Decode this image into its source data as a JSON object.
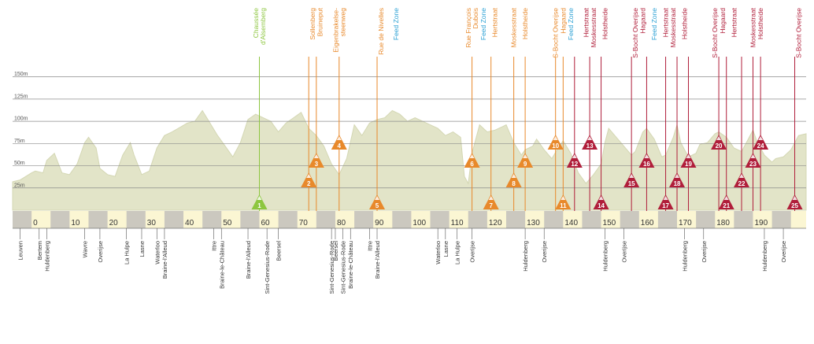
{
  "chart_data": {
    "type": "area",
    "xlim": [
      -5,
      204
    ],
    "ylim": [
      0,
      155
    ],
    "y_ticks": [
      {
        "v": 150,
        "label": "150m"
      },
      {
        "v": 125,
        "label": "125m"
      },
      {
        "v": 100,
        "label": "100m"
      },
      {
        "v": 75,
        "label": "75m"
      },
      {
        "v": 50,
        "label": "50m"
      },
      {
        "v": 25,
        "label": "25m"
      }
    ],
    "x_ticks": [
      {
        "v": 0,
        "label": "0"
      },
      {
        "v": 10,
        "label": "10"
      },
      {
        "v": 20,
        "label": "20"
      },
      {
        "v": 30,
        "label": "30"
      },
      {
        "v": 40,
        "label": "40"
      },
      {
        "v": 50,
        "label": "50"
      },
      {
        "v": 60,
        "label": "60"
      },
      {
        "v": 70,
        "label": "70"
      },
      {
        "v": 80,
        "label": "80"
      },
      {
        "v": 90,
        "label": "90"
      },
      {
        "v": 100,
        "label": "100"
      },
      {
        "v": 110,
        "label": "110"
      },
      {
        "v": 120,
        "label": "120"
      },
      {
        "v": 130,
        "label": "130"
      },
      {
        "v": 140,
        "label": "140"
      },
      {
        "v": 150,
        "label": "150"
      },
      {
        "v": 160,
        "label": "160"
      },
      {
        "v": 170,
        "label": "170"
      },
      {
        "v": 180,
        "label": "180"
      },
      {
        "v": 190,
        "label": "190"
      }
    ],
    "profile": [
      [
        -5,
        32
      ],
      [
        -3,
        34
      ],
      [
        0,
        42
      ],
      [
        1,
        44
      ],
      [
        3,
        42
      ],
      [
        4,
        56
      ],
      [
        6,
        64
      ],
      [
        8,
        42
      ],
      [
        10,
        40
      ],
      [
        12,
        52
      ],
      [
        14,
        76
      ],
      [
        15,
        82
      ],
      [
        17,
        70
      ],
      [
        18,
        47
      ],
      [
        20,
        40
      ],
      [
        22,
        38
      ],
      [
        24,
        62
      ],
      [
        26,
        76
      ],
      [
        27,
        62
      ],
      [
        29,
        40
      ],
      [
        31,
        44
      ],
      [
        33,
        70
      ],
      [
        35,
        84
      ],
      [
        37,
        88
      ],
      [
        39,
        93
      ],
      [
        41,
        98
      ],
      [
        43,
        100
      ],
      [
        45,
        112
      ],
      [
        47,
        98
      ],
      [
        49,
        84
      ],
      [
        51,
        72
      ],
      [
        53,
        60
      ],
      [
        55,
        76
      ],
      [
        57,
        102
      ],
      [
        59,
        108
      ],
      [
        61,
        104
      ],
      [
        63,
        100
      ],
      [
        65,
        88
      ],
      [
        67,
        98
      ],
      [
        69,
        104
      ],
      [
        71,
        110
      ],
      [
        73,
        92
      ],
      [
        75,
        84
      ],
      [
        77,
        72
      ],
      [
        79,
        52
      ],
      [
        81,
        40
      ],
      [
        83,
        58
      ],
      [
        85,
        96
      ],
      [
        87,
        84
      ],
      [
        89,
        98
      ],
      [
        91,
        102
      ],
      [
        93,
        104
      ],
      [
        95,
        112
      ],
      [
        97,
        108
      ],
      [
        99,
        100
      ],
      [
        101,
        104
      ],
      [
        103,
        100
      ],
      [
        105,
        96
      ],
      [
        107,
        92
      ],
      [
        109,
        84
      ],
      [
        111,
        88
      ],
      [
        113,
        82
      ],
      [
        114,
        38
      ],
      [
        115,
        30
      ],
      [
        116,
        64
      ],
      [
        118,
        96
      ],
      [
        120,
        88
      ],
      [
        122,
        90
      ],
      [
        124,
        94
      ],
      [
        125,
        96
      ],
      [
        127,
        76
      ],
      [
        129,
        62
      ],
      [
        130,
        68
      ],
      [
        132,
        72
      ],
      [
        133,
        80
      ],
      [
        135,
        68
      ],
      [
        137,
        58
      ],
      [
        139,
        72
      ],
      [
        140,
        78
      ],
      [
        142,
        64
      ],
      [
        144,
        42
      ],
      [
        146,
        30
      ],
      [
        148,
        40
      ],
      [
        150,
        52
      ],
      [
        151,
        76
      ],
      [
        152,
        92
      ],
      [
        154,
        82
      ],
      [
        156,
        72
      ],
      [
        158,
        62
      ],
      [
        159,
        66
      ],
      [
        161,
        88
      ],
      [
        162,
        92
      ],
      [
        164,
        80
      ],
      [
        166,
        60
      ],
      [
        167,
        62
      ],
      [
        169,
        82
      ],
      [
        170,
        96
      ],
      [
        171,
        76
      ],
      [
        173,
        60
      ],
      [
        175,
        64
      ],
      [
        176,
        74
      ],
      [
        178,
        76
      ],
      [
        180,
        86
      ],
      [
        181,
        88
      ],
      [
        183,
        82
      ],
      [
        185,
        70
      ],
      [
        187,
        66
      ],
      [
        189,
        82
      ],
      [
        190,
        90
      ],
      [
        191,
        78
      ],
      [
        193,
        62
      ],
      [
        195,
        54
      ],
      [
        196,
        58
      ],
      [
        198,
        60
      ],
      [
        200,
        68
      ],
      [
        202,
        84
      ],
      [
        204,
        86
      ]
    ],
    "climbs": [
      {
        "num": "1",
        "km": 60,
        "label": "Chaussée\nd'Alsemberg",
        "color": "#8dc63f",
        "level": 1
      },
      {
        "num": "2",
        "km": 73,
        "label": "",
        "color": "#e8892b",
        "level": 3
      },
      {
        "num": "3",
        "km": 75,
        "label": "",
        "color": "#e8892b",
        "level": 4
      },
      {
        "num": "4",
        "km": 81,
        "label": "",
        "color": "#e8892b",
        "level": 5
      },
      {
        "num": "5",
        "km": 91,
        "label": "Rue de Nivelles",
        "color": "#e8892b",
        "level": 1
      },
      {
        "num": "6",
        "km": 116,
        "label": "",
        "color": "#e8892b",
        "level": 4
      },
      {
        "num": "7",
        "km": 121,
        "label": "",
        "color": "#e8892b",
        "level": 1
      },
      {
        "num": "8",
        "km": 127,
        "label": "",
        "color": "#e8892b",
        "level": 3
      },
      {
        "num": "9",
        "km": 130,
        "label": "",
        "color": "#e8892b",
        "level": 4
      },
      {
        "num": "10",
        "km": 138,
        "label": "",
        "color": "#e8892b",
        "level": 5
      },
      {
        "num": "11",
        "km": 140,
        "label": "",
        "color": "#e8892b",
        "level": 1
      },
      {
        "num": "12",
        "km": 143,
        "label": "",
        "color": "#b01e3a",
        "level": 4
      },
      {
        "num": "13",
        "km": 147,
        "label": "",
        "color": "#b01e3a",
        "level": 5
      },
      {
        "num": "14",
        "km": 150,
        "label": "",
        "color": "#b01e3a",
        "level": 1
      },
      {
        "num": "15",
        "km": 158,
        "label": "",
        "color": "#b01e3a",
        "level": 3
      },
      {
        "num": "16",
        "km": 162,
        "label": "",
        "color": "#b01e3a",
        "level": 4
      },
      {
        "num": "17",
        "km": 167,
        "label": "",
        "color": "#b01e3a",
        "level": 1
      },
      {
        "num": "18",
        "km": 170,
        "label": "",
        "color": "#b01e3a",
        "level": 3
      },
      {
        "num": "19",
        "km": 173,
        "label": "",
        "color": "#b01e3a",
        "level": 4
      },
      {
        "num": "20",
        "km": 181,
        "label": "",
        "color": "#b01e3a",
        "level": 5
      },
      {
        "num": "21",
        "km": 183,
        "label": "",
        "color": "#b01e3a",
        "level": 1
      },
      {
        "num": "22",
        "km": 187,
        "label": "",
        "color": "#b01e3a",
        "level": 3
      },
      {
        "num": "23",
        "km": 190,
        "label": "",
        "color": "#b01e3a",
        "level": 4
      },
      {
        "num": "24",
        "km": 192,
        "label": "",
        "color": "#b01e3a",
        "level": 5
      },
      {
        "num": "25",
        "km": 201,
        "label": "",
        "color": "#b01e3a",
        "level": 1
      }
    ],
    "top_labels": [
      {
        "km": 60,
        "text": "Chaussée\nd'Alsemberg",
        "color": "#8dc63f"
      },
      {
        "km": 74,
        "text": "Sollenberg",
        "color": "#e8892b"
      },
      {
        "km": 76,
        "text": "Bruineput",
        "color": "#e8892b"
      },
      {
        "km": 81,
        "text": "Eigenbrakelse-\nsteenweg",
        "color": "#e8892b"
      },
      {
        "km": 92,
        "text": "Rue de Nivelles",
        "color": "#e8892b"
      },
      {
        "km": 96,
        "text": "Feed Zone",
        "color": "#2aa0d4"
      },
      {
        "km": 116,
        "text": "Rue François\nDubois",
        "color": "#e8892b"
      },
      {
        "km": 119,
        "text": "Feed Zone",
        "color": "#2aa0d4"
      },
      {
        "km": 122,
        "text": "Hertstraat",
        "color": "#e8892b"
      },
      {
        "km": 127,
        "text": "Moskesstraat",
        "color": "#e8892b"
      },
      {
        "km": 130,
        "text": "Holstheide",
        "color": "#e8892b"
      },
      {
        "km": 138,
        "text": "S-Bocht Overijse",
        "color": "#e8892b"
      },
      {
        "km": 140,
        "text": "Hagaard",
        "color": "#e8892b"
      },
      {
        "km": 142,
        "text": "Feed Zone",
        "color": "#2aa0d4"
      },
      {
        "km": 146,
        "text": "Hertstraat",
        "color": "#b01e3a"
      },
      {
        "km": 148,
        "text": "Moskesstraat",
        "color": "#b01e3a"
      },
      {
        "km": 151,
        "text": "Holstheide",
        "color": "#b01e3a"
      },
      {
        "km": 159,
        "text": "S-Bocht Overijse",
        "color": "#b01e3a"
      },
      {
        "km": 161,
        "text": "Hagaard",
        "color": "#b01e3a"
      },
      {
        "km": 164,
        "text": "Feed Zone",
        "color": "#2aa0d4"
      },
      {
        "km": 167,
        "text": "Hertstraat",
        "color": "#b01e3a"
      },
      {
        "km": 169,
        "text": "Moskesstraat",
        "color": "#b01e3a"
      },
      {
        "km": 172,
        "text": "Holstheide",
        "color": "#b01e3a"
      },
      {
        "km": 180,
        "text": "S-Bocht Overijse",
        "color": "#b01e3a"
      },
      {
        "km": 182,
        "text": "Hagaard",
        "color": "#b01e3a"
      },
      {
        "km": 185,
        "text": "Hertstraat",
        "color": "#b01e3a"
      },
      {
        "km": 190,
        "text": "Moskesstraat",
        "color": "#b01e3a"
      },
      {
        "km": 192,
        "text": "Holstheide",
        "color": "#b01e3a"
      },
      {
        "km": 202,
        "text": "S-Bocht Overijse",
        "color": "#b01e3a"
      }
    ],
    "towns": [
      {
        "km": -3,
        "name": "Leuven"
      },
      {
        "km": 2,
        "name": "Bertem"
      },
      {
        "km": 4,
        "name": "Huldenberg"
      },
      {
        "km": 14,
        "name": "Wavre"
      },
      {
        "km": 18,
        "name": "Overijse"
      },
      {
        "km": 25,
        "name": "La Hulpe"
      },
      {
        "km": 29,
        "name": "Lasne"
      },
      {
        "km": 33,
        "name": "Waterloo"
      },
      {
        "km": 35,
        "name": "Braine-l'Alleud"
      },
      {
        "km": 48,
        "name": "Ittre"
      },
      {
        "km": 50,
        "name": "Braine-le-Château"
      },
      {
        "km": 57,
        "name": "Braine-l'Alleud"
      },
      {
        "km": 62,
        "name": "Sint-Genesius-Rode"
      },
      {
        "km": 65,
        "name": "Beersel"
      },
      {
        "km": 79,
        "name": "Sint-Genesius-Rode"
      },
      {
        "km": 80,
        "name": "Beersel"
      },
      {
        "km": 82,
        "name": "Sint-Genesius-Rode"
      },
      {
        "km": 84,
        "name": "Braine-le-Château"
      },
      {
        "km": 89,
        "name": "Ittre"
      },
      {
        "km": 91,
        "name": "Braine-l'Alleud"
      },
      {
        "km": 107,
        "name": "Waterloo"
      },
      {
        "km": 109,
        "name": "Lasne"
      },
      {
        "km": 112,
        "name": "La Hulpe"
      },
      {
        "km": 116,
        "name": "Overijse"
      },
      {
        "km": 130,
        "name": "Huldenberg"
      },
      {
        "km": 135,
        "name": "Overijse"
      },
      {
        "km": 151,
        "name": "Huldenberg"
      },
      {
        "km": 156,
        "name": "Overijse"
      },
      {
        "km": 172,
        "name": "Huldenberg"
      },
      {
        "km": 177,
        "name": "Overijse"
      },
      {
        "km": 193,
        "name": "Huldenberg"
      },
      {
        "km": 198,
        "name": "Overijse"
      }
    ],
    "colors": {
      "terrain": "#e2e4c8",
      "terrain_edge": "#d4d7b4",
      "band_light": "#fbf6d3",
      "band_dark": "#cbc8bf",
      "gridline": "#8c8c8c",
      "text": "#555555",
      "green": "#8dc63f",
      "orange": "#e8892b",
      "red": "#b01e3a",
      "blue": "#2aa0d4"
    }
  }
}
